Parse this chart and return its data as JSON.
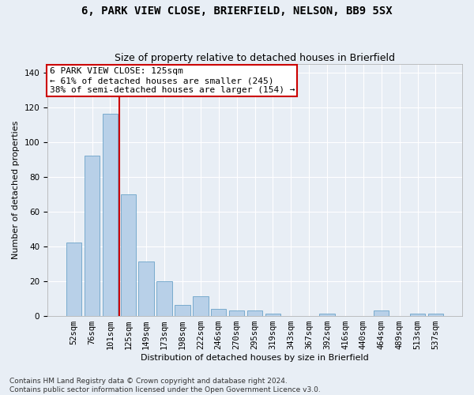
{
  "title": "6, PARK VIEW CLOSE, BRIERFIELD, NELSON, BB9 5SX",
  "subtitle": "Size of property relative to detached houses in Brierfield",
  "xlabel": "Distribution of detached houses by size in Brierfield",
  "ylabel": "Number of detached properties",
  "bar_labels": [
    "52sqm",
    "76sqm",
    "101sqm",
    "125sqm",
    "149sqm",
    "173sqm",
    "198sqm",
    "222sqm",
    "246sqm",
    "270sqm",
    "295sqm",
    "319sqm",
    "343sqm",
    "367sqm",
    "392sqm",
    "416sqm",
    "440sqm",
    "464sqm",
    "489sqm",
    "513sqm",
    "537sqm"
  ],
  "bar_values": [
    42,
    92,
    116,
    70,
    31,
    20,
    6,
    11,
    4,
    3,
    3,
    1,
    0,
    0,
    1,
    0,
    0,
    3,
    0,
    1,
    1
  ],
  "bar_color": "#b8d0e8",
  "bar_edge_color": "#6ba3c8",
  "vline_index": 3,
  "vline_color": "#cc0000",
  "ylim": [
    0,
    145
  ],
  "yticks": [
    0,
    20,
    40,
    60,
    80,
    100,
    120,
    140
  ],
  "annotation_title": "6 PARK VIEW CLOSE: 125sqm",
  "annotation_line1": "← 61% of detached houses are smaller (245)",
  "annotation_line2": "38% of semi-detached houses are larger (154) →",
  "annotation_box_color": "#ffffff",
  "annotation_box_edge": "#cc0000",
  "footer1": "Contains HM Land Registry data © Crown copyright and database right 2024.",
  "footer2": "Contains public sector information licensed under the Open Government Licence v3.0.",
  "bg_color": "#e8eef5",
  "grid_color": "#ffffff",
  "title_fontsize": 10,
  "subtitle_fontsize": 9,
  "axis_label_fontsize": 8,
  "tick_fontsize": 7.5,
  "footer_fontsize": 6.5,
  "annotation_fontsize": 8
}
